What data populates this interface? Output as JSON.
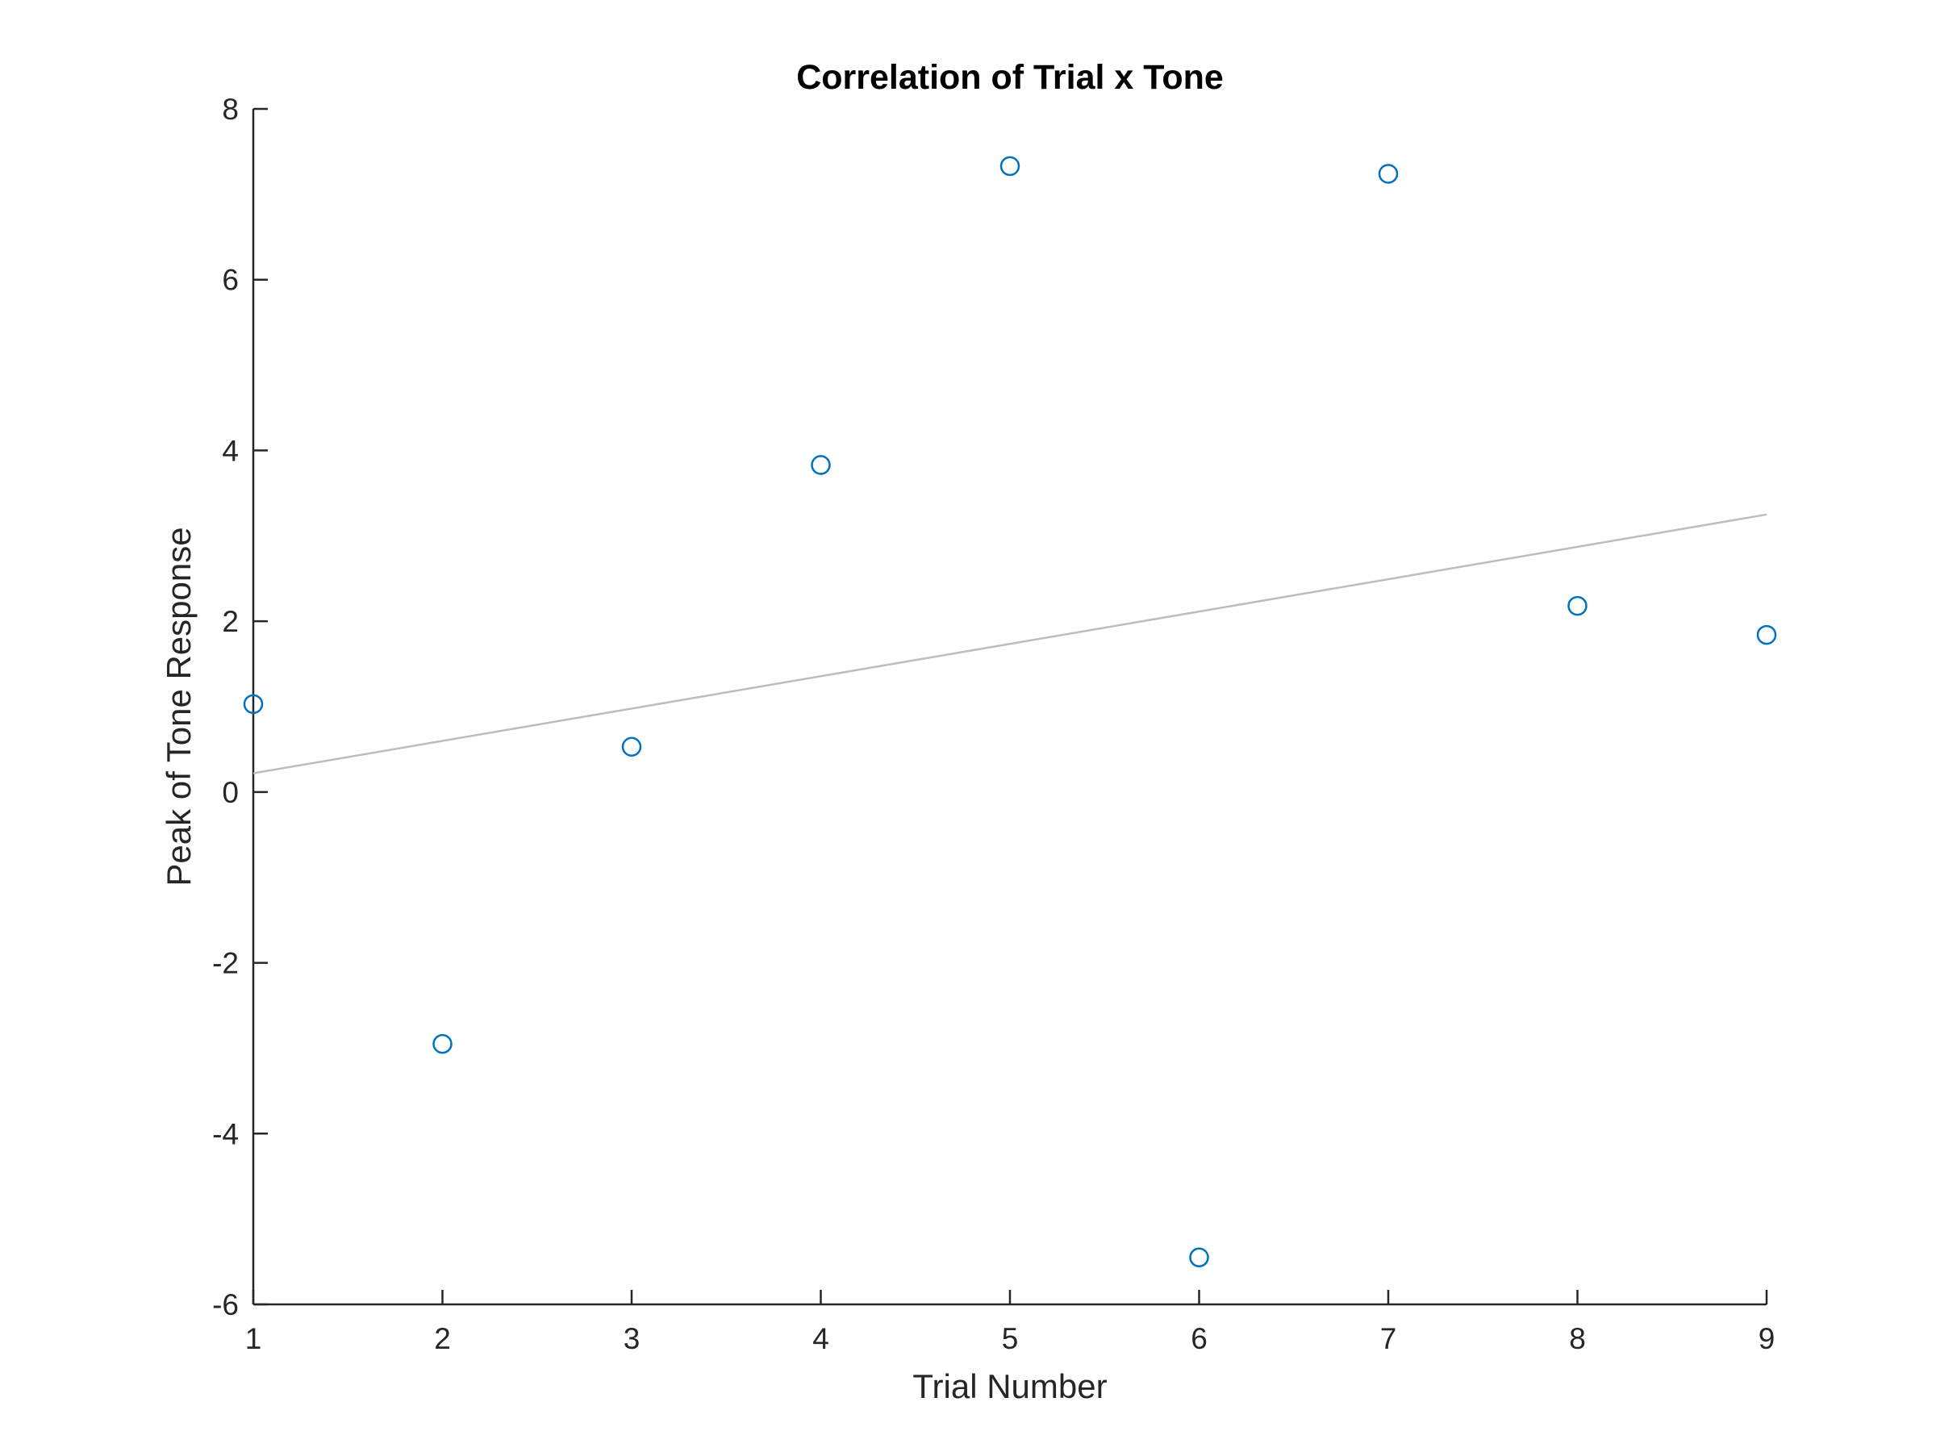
{
  "chart_data": {
    "type": "scatter",
    "title": "Correlation of Trial x Tone",
    "xlabel": "Trial Number",
    "ylabel": "Peak of Tone Response",
    "xlim": [
      1,
      9
    ],
    "ylim": [
      -6,
      8
    ],
    "xticks": [
      "1",
      "2",
      "3",
      "4",
      "5",
      "6",
      "7",
      "8",
      "9"
    ],
    "yticks": [
      "-6",
      "-4",
      "-2",
      "0",
      "2",
      "4",
      "6",
      "8"
    ],
    "grid": false,
    "series": [
      {
        "x": [
          1,
          2,
          3,
          4,
          5,
          6,
          7,
          8,
          9
        ],
        "y": [
          1.03,
          -2.95,
          0.53,
          3.83,
          7.33,
          -5.45,
          7.24,
          2.18,
          1.84
        ],
        "marker": "open-circle",
        "color": "#0072BD"
      }
    ],
    "trendline": {
      "x": [
        1,
        9
      ],
      "y": [
        0.22,
        3.25
      ],
      "color": "#BDBDBD"
    }
  }
}
